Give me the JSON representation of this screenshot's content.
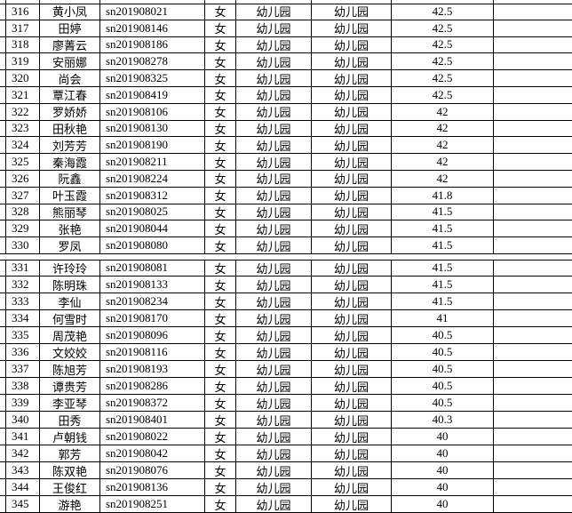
{
  "table": {
    "sections": [
      {
        "rows": [
          [
            "316",
            "黄小凤",
            "sn201908021",
            "女",
            "幼儿园",
            "幼儿园",
            "42.5"
          ],
          [
            "317",
            "田婷",
            "sn201908146",
            "女",
            "幼儿园",
            "幼儿园",
            "42.5"
          ],
          [
            "318",
            "廖菁云",
            "sn201908186",
            "女",
            "幼儿园",
            "幼儿园",
            "42.5"
          ],
          [
            "319",
            "安丽娜",
            "sn201908278",
            "女",
            "幼儿园",
            "幼儿园",
            "42.5"
          ],
          [
            "320",
            "尚会",
            "sn201908325",
            "女",
            "幼儿园",
            "幼儿园",
            "42.5"
          ],
          [
            "321",
            "覃江春",
            "sn201908419",
            "女",
            "幼儿园",
            "幼儿园",
            "42.5"
          ],
          [
            "322",
            "罗娇娇",
            "sn201908106",
            "女",
            "幼儿园",
            "幼儿园",
            "42"
          ],
          [
            "323",
            "田秋艳",
            "sn201908130",
            "女",
            "幼儿园",
            "幼儿园",
            "42"
          ],
          [
            "324",
            "刘芳芳",
            "sn201908190",
            "女",
            "幼儿园",
            "幼儿园",
            "42"
          ],
          [
            "325",
            "秦海霞",
            "sn201908211",
            "女",
            "幼儿园",
            "幼儿园",
            "42"
          ],
          [
            "326",
            "阮鑫",
            "sn201908224",
            "女",
            "幼儿园",
            "幼儿园",
            "42"
          ],
          [
            "327",
            "叶玉霞",
            "sn201908312",
            "女",
            "幼儿园",
            "幼儿园",
            "41.8"
          ],
          [
            "328",
            "熊丽琴",
            "sn201908025",
            "女",
            "幼儿园",
            "幼儿园",
            "41.5"
          ],
          [
            "329",
            "张艳",
            "sn201908044",
            "女",
            "幼儿园",
            "幼儿园",
            "41.5"
          ],
          [
            "330",
            "罗凤",
            "sn201908080",
            "女",
            "幼儿园",
            "幼儿园",
            "41.5"
          ]
        ]
      },
      {
        "rows": [
          [
            "331",
            "许玲玲",
            "sn201908081",
            "女",
            "幼儿园",
            "幼儿园",
            "41.5"
          ],
          [
            "332",
            "陈明珠",
            "sn201908133",
            "女",
            "幼儿园",
            "幼儿园",
            "41.5"
          ],
          [
            "333",
            "李仙",
            "sn201908234",
            "女",
            "幼儿园",
            "幼儿园",
            "41.5"
          ],
          [
            "334",
            "何雪时",
            "sn201908170",
            "女",
            "幼儿园",
            "幼儿园",
            "41"
          ],
          [
            "335",
            "周茂艳",
            "sn201908096",
            "女",
            "幼儿园",
            "幼儿园",
            "40.5"
          ],
          [
            "336",
            "文姣姣",
            "sn201908116",
            "女",
            "幼儿园",
            "幼儿园",
            "40.5"
          ],
          [
            "337",
            "陈旭芳",
            "sn201908193",
            "女",
            "幼儿园",
            "幼儿园",
            "40.5"
          ],
          [
            "338",
            "谭贵芳",
            "sn201908286",
            "女",
            "幼儿园",
            "幼儿园",
            "40.5"
          ],
          [
            "339",
            "李亚琴",
            "sn201908372",
            "女",
            "幼儿园",
            "幼儿园",
            "40.5"
          ],
          [
            "340",
            "田秀",
            "sn201908401",
            "女",
            "幼儿园",
            "幼儿园",
            "40.3"
          ],
          [
            "341",
            "卢朝钱",
            "sn201908022",
            "女",
            "幼儿园",
            "幼儿园",
            "40"
          ],
          [
            "342",
            "郭芳",
            "sn201908042",
            "女",
            "幼儿园",
            "幼儿园",
            "40"
          ],
          [
            "343",
            "陈双艳",
            "sn201908076",
            "女",
            "幼儿园",
            "幼儿园",
            "40"
          ],
          [
            "344",
            "王俊红",
            "sn201908136",
            "女",
            "幼儿园",
            "幼儿园",
            "40"
          ],
          [
            "345",
            "游艳",
            "sn201908251",
            "女",
            "幼儿园",
            "幼儿园",
            "40"
          ]
        ]
      }
    ]
  }
}
